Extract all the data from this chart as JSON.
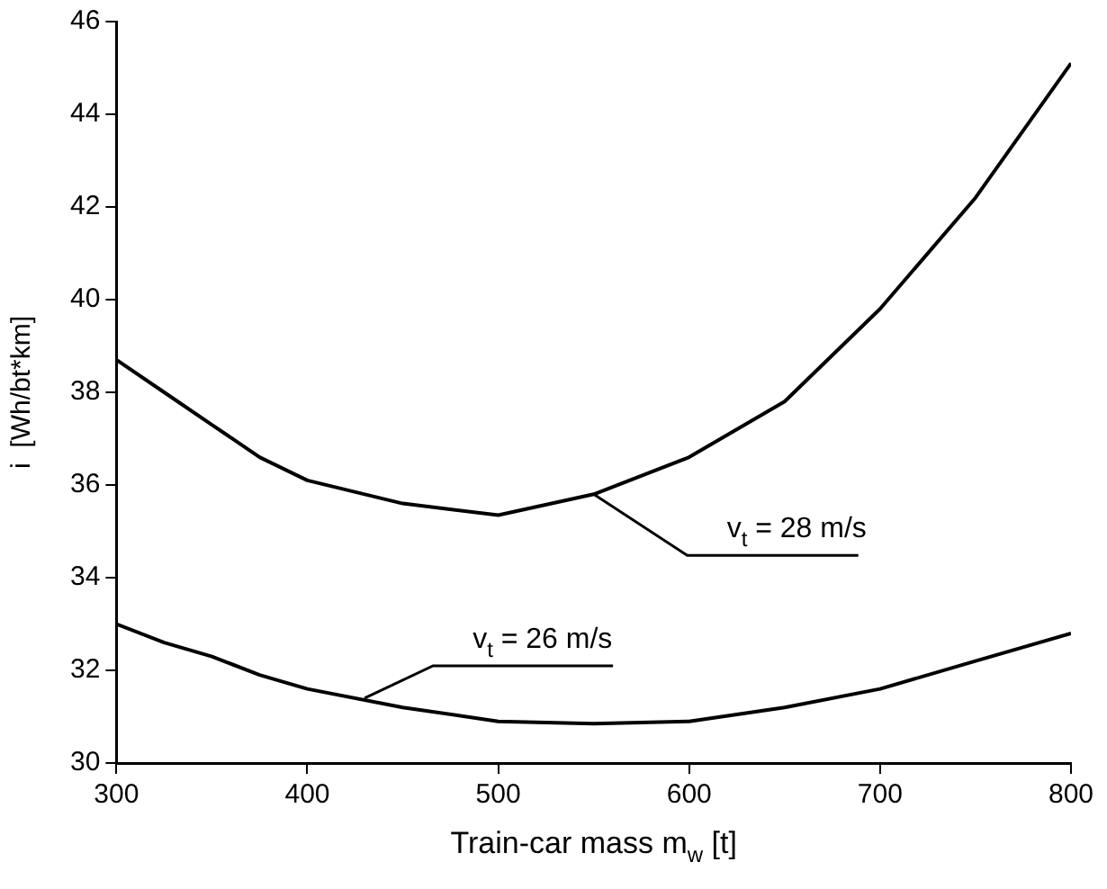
{
  "chart_data": {
    "type": "line",
    "xlabel": "Train-car mass m$_{w}$ [t]",
    "ylabel": "i  [Wh/bt*km]",
    "x": [
      300,
      325,
      350,
      375,
      400,
      450,
      500,
      550,
      600,
      650,
      700,
      750,
      800
    ],
    "series": [
      {
        "color": "#000000",
        "values": [
          38.7,
          38.0,
          37.3,
          36.6,
          36.1,
          35.6,
          35.35,
          35.8,
          36.6,
          37.8,
          39.8,
          42.2,
          45.1
        ]
      },
      {
        "color": "#000000",
        "values": [
          33.0,
          32.6,
          32.3,
          31.9,
          31.6,
          31.2,
          30.9,
          30.85,
          30.9,
          31.2,
          31.6,
          32.2,
          32.8
        ]
      }
    ],
    "annotations": [
      {
        "text": "v$_{t}$ = 28 m/s",
        "x": 550,
        "y": 35.8
      },
      {
        "text": "v$_{t}$ = 26 m/s",
        "x": 430,
        "y": 31.4
      }
    ],
    "xlim": [
      300,
      800
    ],
    "xticks": [
      300,
      400,
      500,
      600,
      700,
      800
    ],
    "ylim": [
      30,
      46
    ],
    "yticks": [
      30,
      32,
      34,
      36,
      38,
      40,
      42,
      44,
      46
    ],
    "grid": false,
    "legend": false,
    "marker": "none",
    "line_style": "solid"
  }
}
